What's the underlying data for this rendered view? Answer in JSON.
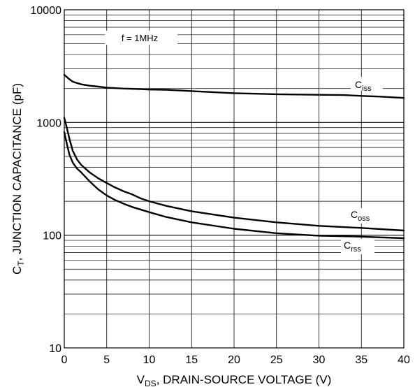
{
  "chart_data": {
    "type": "line",
    "title": "",
    "xlabel": {
      "main": "V",
      "sub": "DS",
      "rest": ", DRAIN-SOURCE VOLTAGE (V)"
    },
    "ylabel": {
      "main": "C",
      "sub": "T",
      "rest": ", JUNCTION CAPACITANCE (pF)"
    },
    "xlim": [
      0,
      40
    ],
    "ylim": [
      10,
      10000
    ],
    "yscale": "log",
    "grid": true,
    "x_ticks": [
      0,
      5,
      10,
      15,
      20,
      25,
      30,
      35,
      40
    ],
    "x_tick_labels": [
      "0",
      "5",
      "10",
      "15",
      "20",
      "25",
      "30",
      "35",
      "40"
    ],
    "y_tick_labels": [
      "10",
      "100",
      "1000",
      "10000"
    ],
    "annotation": "f = 1MHz",
    "series": [
      {
        "name": "Ciss",
        "label_main": "C",
        "label_sub": "iss",
        "x": [
          0,
          0.5,
          1,
          2,
          3,
          4,
          5,
          7,
          9,
          10,
          12,
          15,
          20,
          25,
          30,
          33,
          35,
          37,
          40
        ],
        "y": [
          2650,
          2450,
          2300,
          2180,
          2120,
          2080,
          2040,
          2000,
          1980,
          1960,
          1950,
          1900,
          1820,
          1780,
          1760,
          1750,
          1720,
          1700,
          1650
        ]
      },
      {
        "name": "Coss",
        "label_main": "C",
        "label_sub": "oss",
        "x": [
          0,
          0.3,
          0.6,
          1,
          1.5,
          2,
          3,
          4,
          5,
          6,
          7,
          8,
          9,
          10,
          12,
          15,
          20,
          25,
          30,
          35,
          40
        ],
        "y": [
          1100,
          900,
          720,
          560,
          470,
          420,
          360,
          320,
          290,
          265,
          245,
          230,
          212,
          200,
          182,
          163,
          143,
          130,
          121,
          116,
          110
        ]
      },
      {
        "name": "Crss",
        "label_main": "C",
        "label_sub": "rss",
        "x": [
          0,
          0.3,
          0.6,
          1,
          1.5,
          2,
          3,
          4,
          5,
          6,
          7,
          8,
          10,
          12,
          15,
          20,
          25,
          30,
          35,
          40
        ],
        "y": [
          820,
          650,
          520,
          440,
          390,
          360,
          300,
          255,
          225,
          205,
          190,
          178,
          160,
          145,
          130,
          114,
          104,
          99,
          97,
          94
        ]
      }
    ]
  }
}
